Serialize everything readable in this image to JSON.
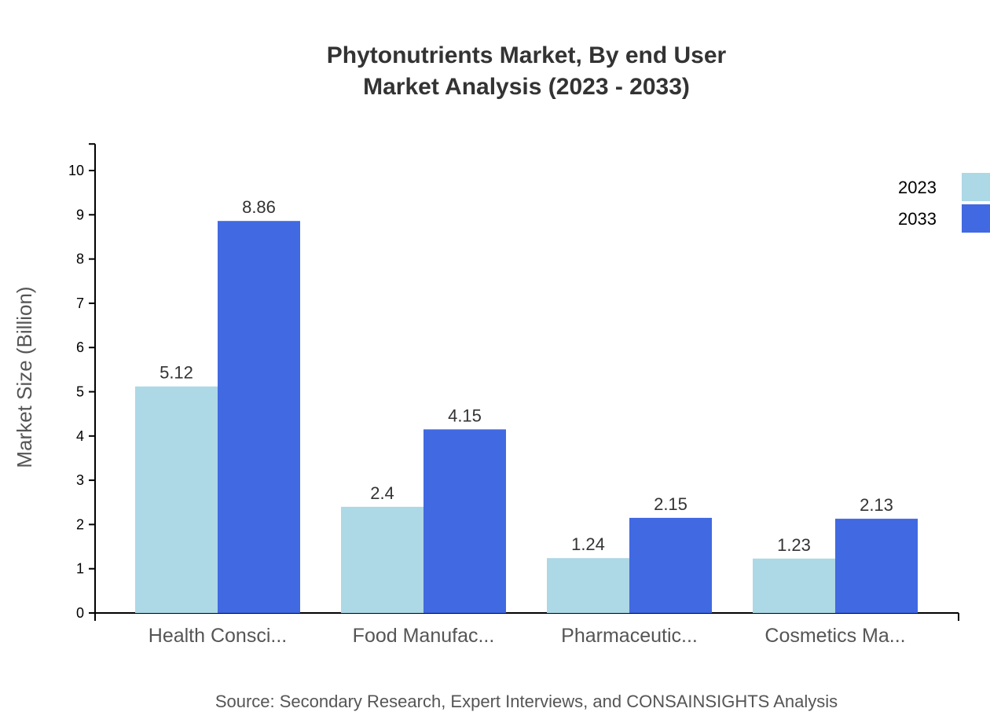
{
  "chart_data": {
    "type": "bar",
    "title": "Phytonutrients Market, By end User",
    "subtitle": "Market Analysis (2023 - 2033)",
    "xlabel": "",
    "ylabel": "Market Size (Billion)",
    "ylim": [
      0,
      10.6
    ],
    "yticks": [
      0,
      1,
      2,
      3,
      4,
      5,
      6,
      7,
      8,
      9,
      10
    ],
    "categories": [
      "Health Consci...",
      "Food Manufac...",
      "Pharmaceutic...",
      "Cosmetics Ma..."
    ],
    "series": [
      {
        "name": "2023",
        "color": "#add8e6",
        "values": [
          5.12,
          2.4,
          1.24,
          1.23
        ]
      },
      {
        "name": "2033",
        "color": "#4169e1",
        "values": [
          8.86,
          4.15,
          2.15,
          2.13
        ]
      }
    ],
    "grid": false,
    "legend": "top-right",
    "source": "Source: Secondary Research, Expert Interviews, and CONSAINSIGHTS Analysis"
  }
}
